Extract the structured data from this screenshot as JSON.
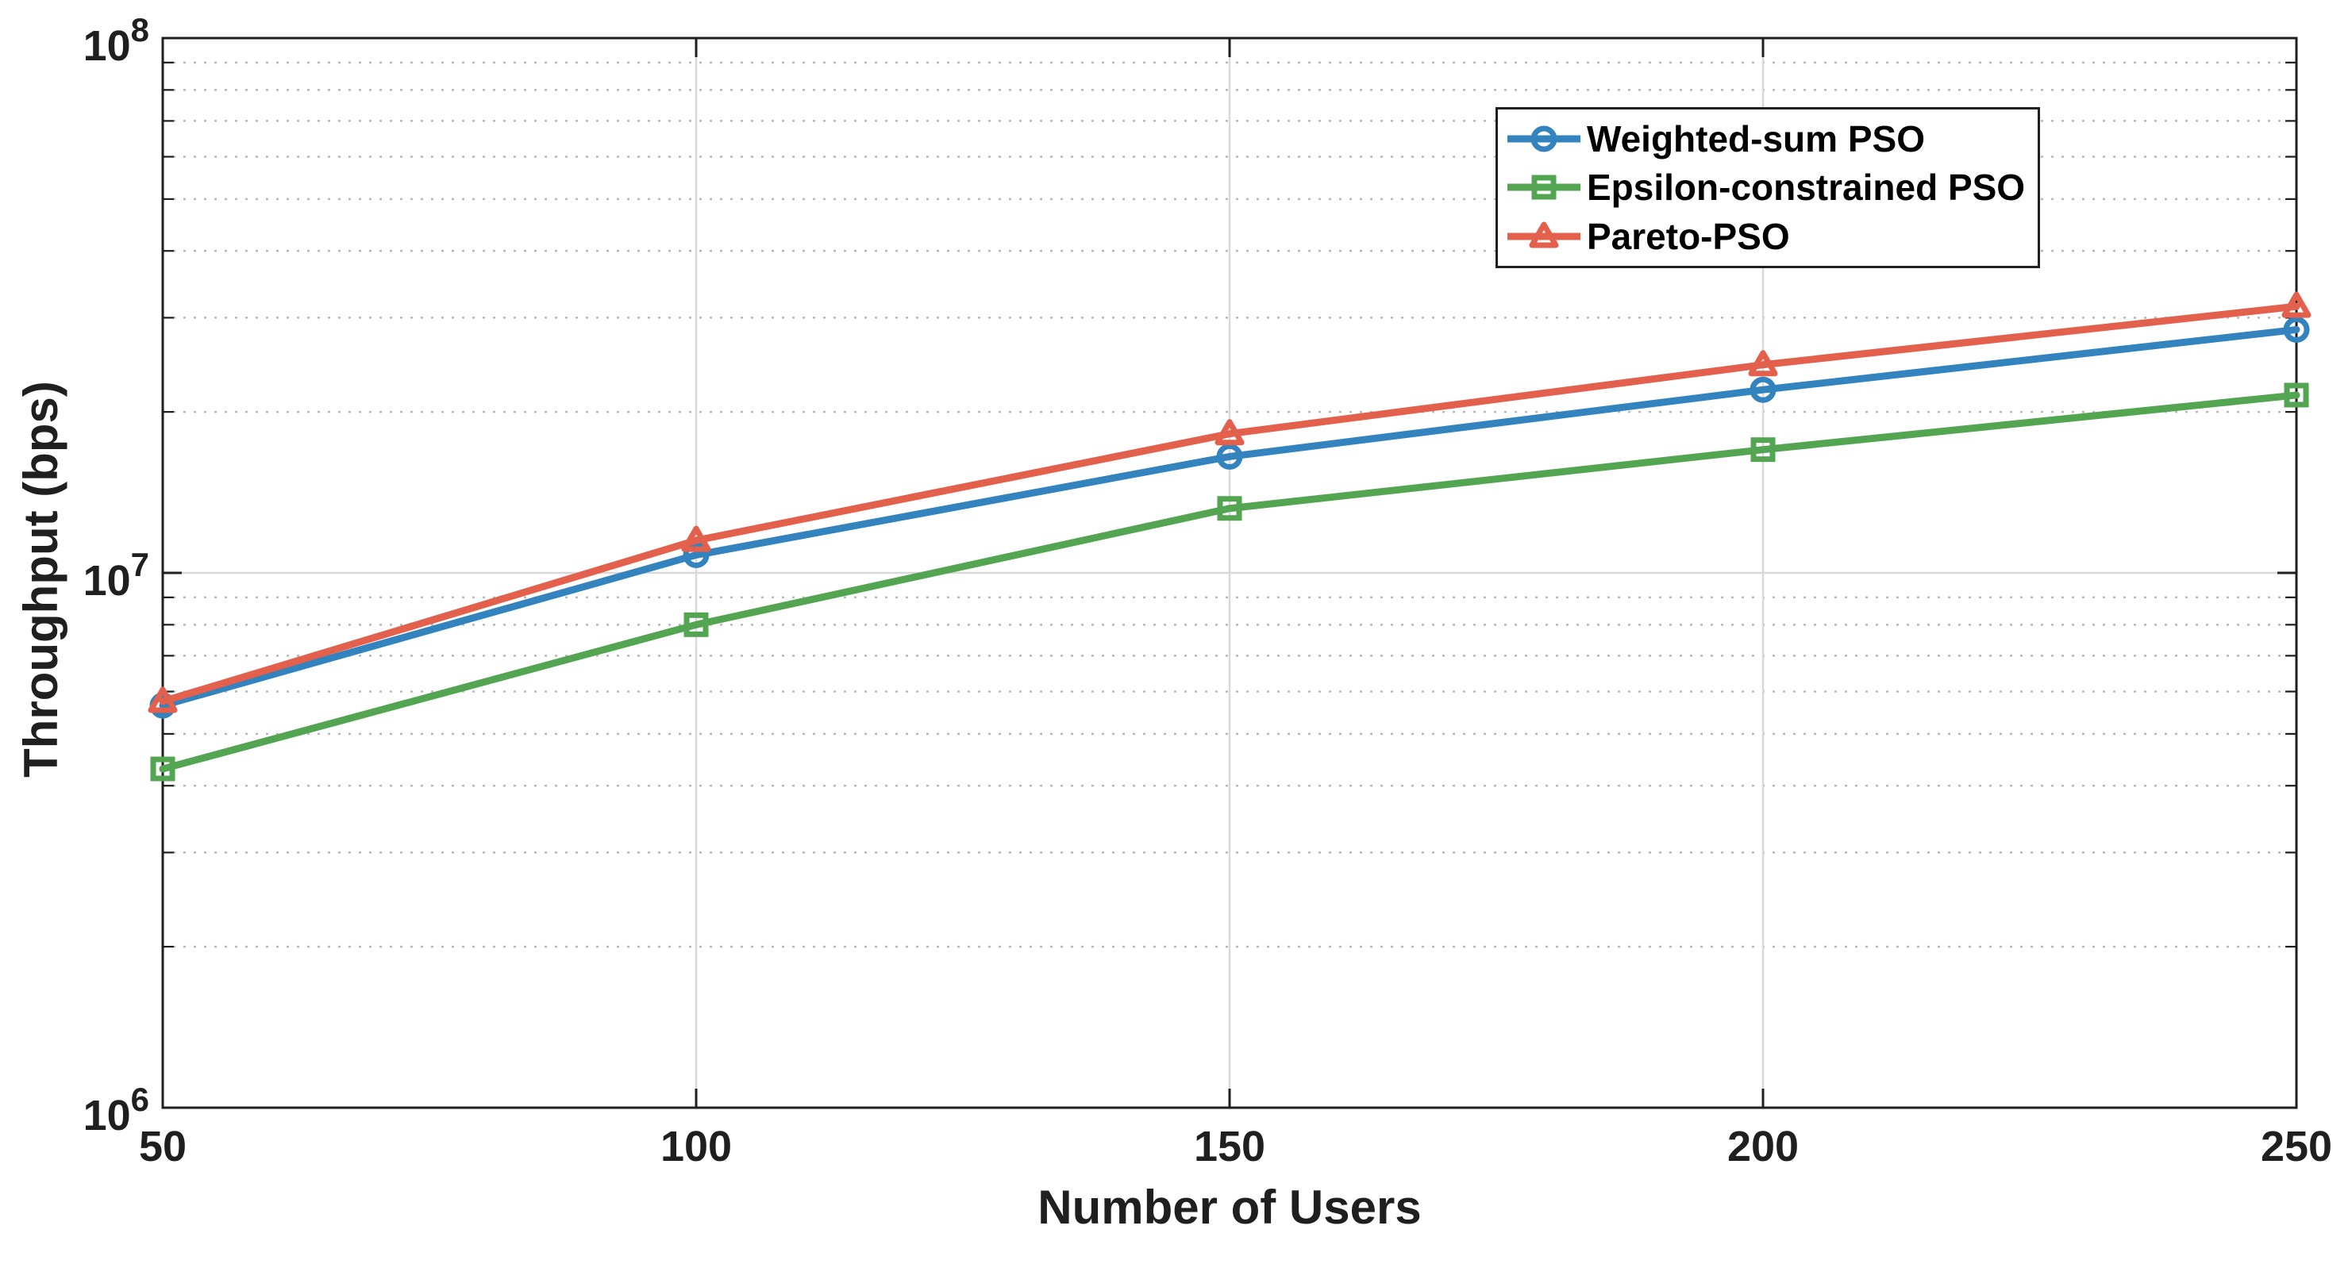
{
  "figure": {
    "background": "#ffffff",
    "axis_color": "#1f1f1f",
    "grid_major_color": "#d9d9d9",
    "grid_minor_color": "#b8b8b8"
  },
  "chart_data": {
    "type": "line",
    "title": "",
    "xlabel": "Number of Users",
    "ylabel": "Throughput (bps)",
    "x": [
      50,
      100,
      150,
      200,
      250
    ],
    "x_tick_labels": [
      "50",
      "100",
      "150",
      "200",
      "250"
    ],
    "xlim": [
      50,
      250
    ],
    "y_scale": "log10",
    "ylim": [
      1000000,
      100000000
    ],
    "y_tick_base": "10",
    "y_tick_exponents": [
      6,
      7,
      8
    ],
    "grid": "major solid, minor dotted, horizontal minors on log decades",
    "legend_position": "upper right inside",
    "series": [
      {
        "name": "Weighted-sum PSO",
        "color": "#3383be",
        "marker": "circle",
        "values": [
          5650000,
          10800000,
          16500000,
          22000000,
          28500000
        ]
      },
      {
        "name": "Epsilon-constrained PSO",
        "color": "#54a552",
        "marker": "square",
        "values": [
          4300000,
          8000000,
          13200000,
          17000000,
          21500000
        ]
      },
      {
        "name": "Pareto-PSO",
        "color": "#e2604c",
        "marker": "triangle",
        "values": [
          5750000,
          11500000,
          18200000,
          24500000,
          31500000
        ]
      }
    ]
  }
}
